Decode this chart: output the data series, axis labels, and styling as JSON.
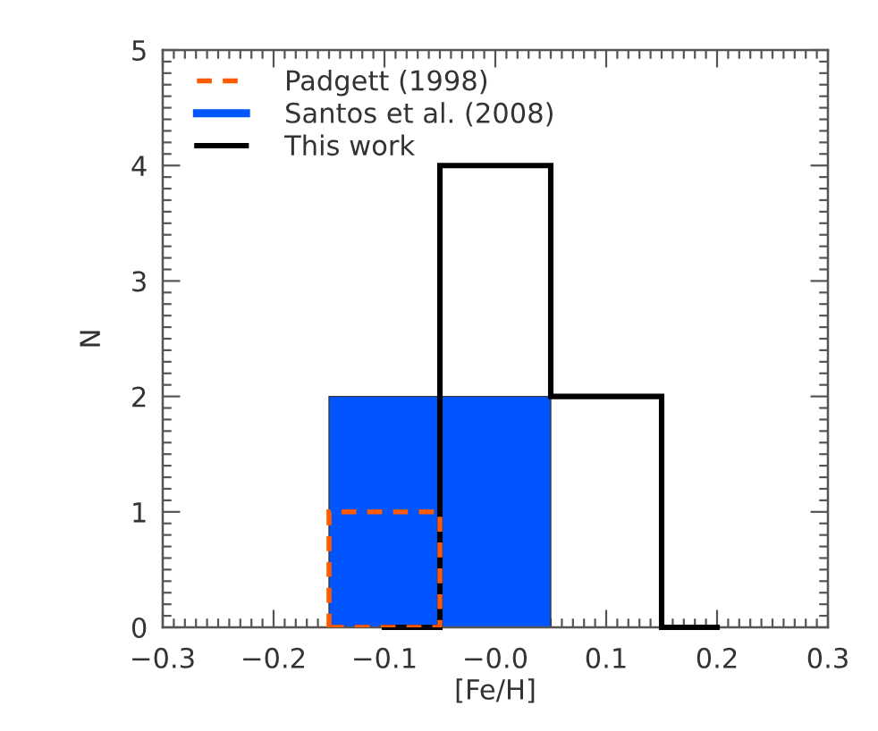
{
  "chart_data": {
    "type": "histogram",
    "xlabel": "[Fe/H]",
    "ylabel": "N",
    "xlim": [
      -0.3,
      0.3
    ],
    "ylim": [
      0,
      5
    ],
    "xticks": [
      {
        "value": -0.3,
        "label": "−0.3"
      },
      {
        "value": -0.2,
        "label": "−0.2"
      },
      {
        "value": -0.1,
        "label": "−0.1"
      },
      {
        "value": 0,
        "label": "−0.0"
      },
      0.1,
      0.2,
      0.3
    ],
    "yticks": [
      0,
      1,
      2,
      3,
      4,
      5
    ],
    "legend": "top left",
    "grid": false,
    "bins": [
      -0.15,
      -0.05,
      0.05
    ],
    "series": [
      {
        "name": "Padgett (1998)",
        "color": "#ff5a00",
        "line_style": "dashed",
        "values": [
          1,
          null
        ]
      },
      {
        "name": "Santos et al. (2008)",
        "color": "#0055ff",
        "values": [
          2,
          2
        ]
      },
      {
        "name": "This work",
        "type": "step",
        "color": "#000000",
        "line_style": "solid",
        "x": [
          -0.1,
          0,
          0.1,
          0.2
        ],
        "values": [
          0,
          4,
          2,
          0
        ]
      }
    ]
  }
}
